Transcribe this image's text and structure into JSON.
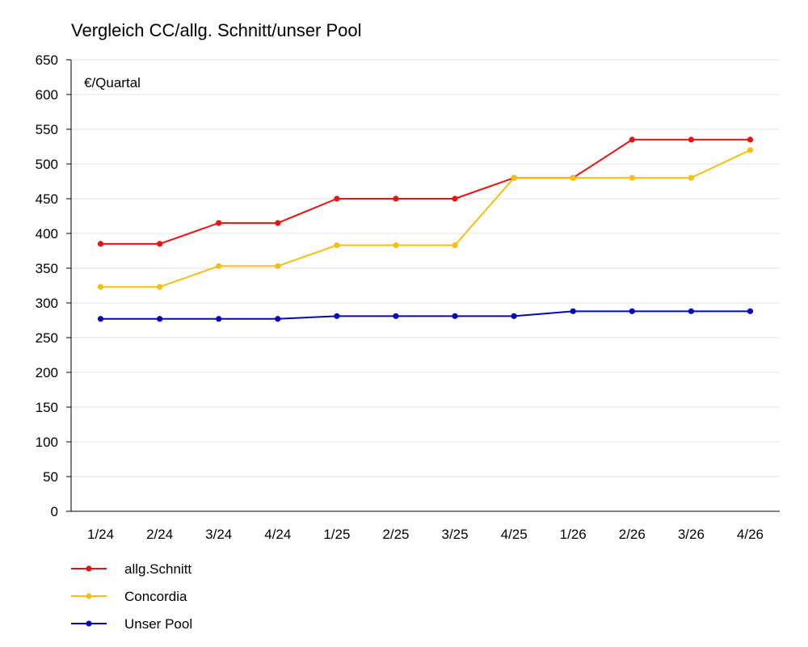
{
  "chart_data": {
    "type": "line",
    "title": "Vergleich CC/allg. Schnitt/unser Pool",
    "unit_label": "€/Quartal",
    "categories": [
      "1/24",
      "2/24",
      "3/24",
      "4/24",
      "1/25",
      "2/25",
      "3/25",
      "4/25",
      "1/26",
      "2/26",
      "3/26",
      "4/26"
    ],
    "ylim": [
      0,
      650
    ],
    "yticks": [
      0,
      50,
      100,
      150,
      200,
      250,
      300,
      350,
      400,
      450,
      500,
      550,
      600,
      650
    ],
    "grid": true,
    "legend_position": "bottom-left",
    "series": [
      {
        "name": "allg.Schnitt",
        "color": "#ee1111",
        "values": [
          385,
          385,
          415,
          415,
          450,
          450,
          450,
          480,
          480,
          535,
          535,
          535
        ]
      },
      {
        "name": "Concordia",
        "color": "#f5bf10",
        "values": [
          323,
          323,
          353,
          353,
          383,
          383,
          383,
          480,
          480,
          480,
          480,
          520
        ]
      },
      {
        "name": "Unser Pool",
        "color": "#0808b8",
        "values": [
          277,
          277,
          277,
          277,
          281,
          281,
          281,
          281,
          288,
          288,
          288,
          288
        ]
      }
    ]
  }
}
